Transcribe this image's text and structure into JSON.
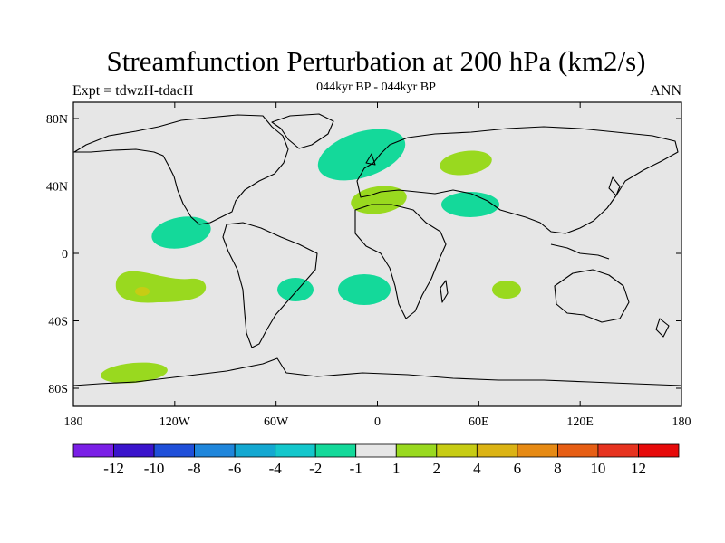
{
  "header": {
    "title": "Streamfunction Perturbation at 200 hPa (km2/s)",
    "left": "Expt = tdwzH-tdacH",
    "center": "044kyr BP - 044kyr BP",
    "right": "ANN"
  },
  "map": {
    "background": "#e6e6e6",
    "lat_ticks": [
      "80N",
      "40N",
      "0",
      "40S",
      "80S"
    ],
    "lon_ticks": [
      "180",
      "120W",
      "60W",
      "0",
      "60E",
      "120E",
      "180"
    ]
  },
  "colorbar": {
    "colors": [
      "#7a1fe6",
      "#3a14cc",
      "#1f4fd9",
      "#1f86db",
      "#14a8d1",
      "#14c7cc",
      "#14d99a",
      "#e6e6e6",
      "#99d91f",
      "#c7cc14",
      "#dbb314",
      "#e68a14",
      "#e65e14",
      "#e6331f",
      "#e60a0a"
    ],
    "labels": [
      "-12",
      "-10",
      "-8",
      "-6",
      "-4",
      "-2",
      "-1",
      "1",
      "2",
      "4",
      "6",
      "8",
      "10",
      "12"
    ]
  }
}
